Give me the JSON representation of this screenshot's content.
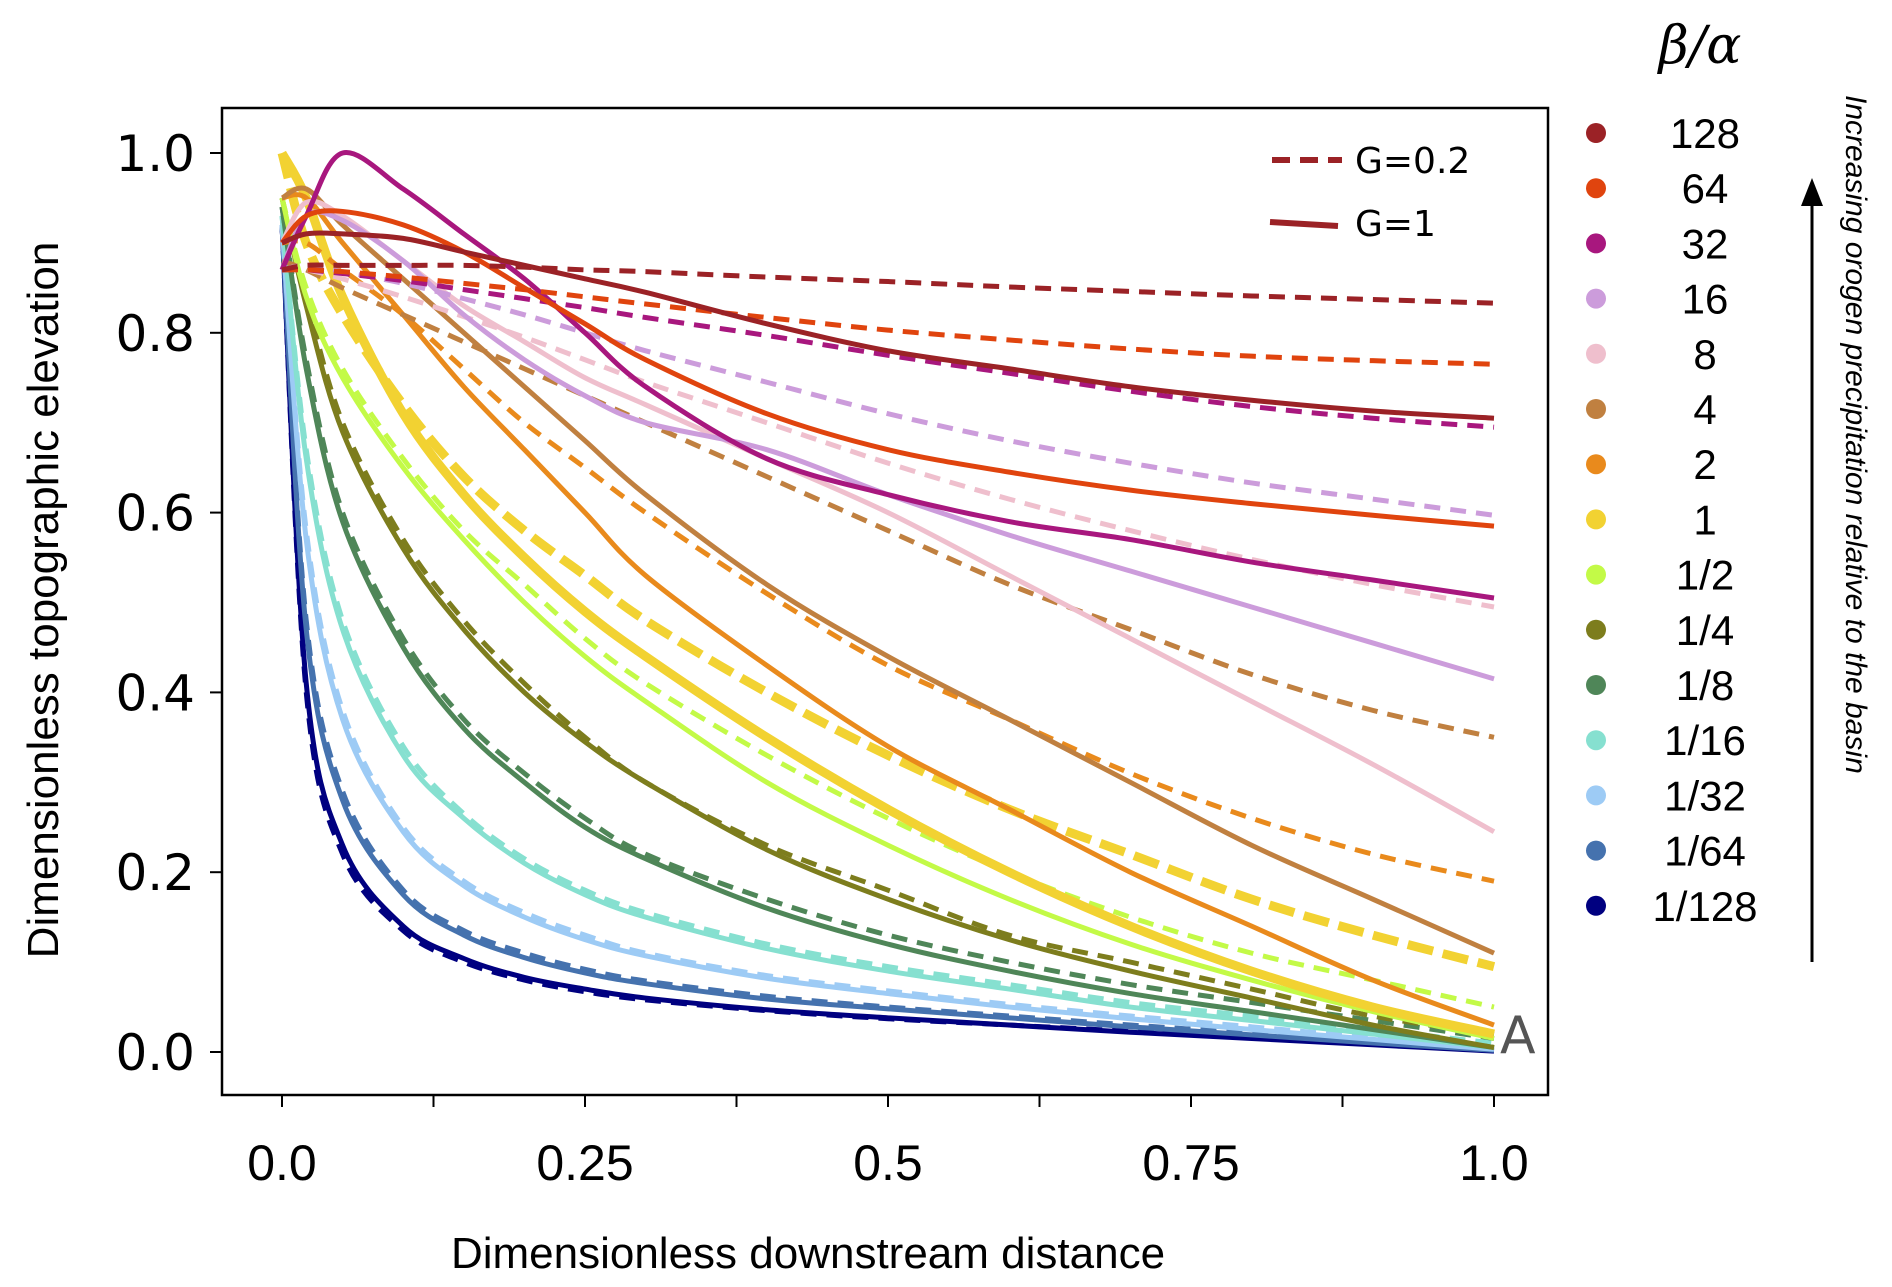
{
  "chart_data": {
    "type": "line",
    "title": "",
    "xlabel": "Dimensionless downstream distance",
    "ylabel": "Dimensionless topographic elevation",
    "xlim": [
      -0.05,
      1.05
    ],
    "ylim": [
      -0.05,
      1.05
    ],
    "x_ticks": [
      0.0,
      0.125,
      0.25,
      0.375,
      0.5,
      0.625,
      0.75,
      0.875,
      1.0
    ],
    "x_tick_labels": [
      {
        "value": 0.0,
        "label": "0.0"
      },
      {
        "value": 0.25,
        "label": "0.25"
      },
      {
        "value": 0.5,
        "label": "0.5"
      },
      {
        "value": 0.75,
        "label": "0.75"
      },
      {
        "value": 1.0,
        "label": "1.0"
      }
    ],
    "y_ticks": [
      {
        "value": 0.0,
        "label": "0.0"
      },
      {
        "value": 0.2,
        "label": "0.2"
      },
      {
        "value": 0.4,
        "label": "0.4"
      },
      {
        "value": 0.6,
        "label": "0.6"
      },
      {
        "value": 0.8,
        "label": "0.8"
      },
      {
        "value": 1.0,
        "label": "1.0"
      }
    ],
    "grid": false,
    "panel_label": "A",
    "style_legend": {
      "position": "top-right",
      "entries": [
        {
          "label": "G=0.2",
          "style": "dashed",
          "color": "#9b2226"
        },
        {
          "label": "G=1",
          "style": "solid",
          "color": "#9b2226"
        }
      ]
    },
    "color_legend": {
      "title": "β/α",
      "position": "right",
      "annotation": "Increasing orogen precipitation relative to the basin"
    },
    "x": [
      0,
      0.02,
      0.05,
      0.1,
      0.15,
      0.2,
      0.25,
      0.3,
      0.4,
      0.5,
      0.6,
      0.7,
      0.8,
      0.9,
      1.0
    ],
    "series": [
      {
        "ratio": "128",
        "color": "#9b2226",
        "G02": [
          0.87,
          0.875,
          0.875,
          0.875,
          0.875,
          0.873,
          0.87,
          0.868,
          0.862,
          0.857,
          0.851,
          0.846,
          0.841,
          0.837,
          0.833
        ],
        "G1": [
          0.9,
          0.91,
          0.91,
          0.905,
          0.89,
          0.875,
          0.86,
          0.845,
          0.81,
          0.78,
          0.76,
          0.74,
          0.725,
          0.713,
          0.705
        ]
      },
      {
        "ratio": "64",
        "color": "#e0440e",
        "G02": [
          0.87,
          0.87,
          0.868,
          0.862,
          0.855,
          0.848,
          0.84,
          0.832,
          0.817,
          0.803,
          0.792,
          0.782,
          0.774,
          0.769,
          0.765
        ],
        "G1": [
          0.9,
          0.93,
          0.935,
          0.92,
          0.89,
          0.85,
          0.81,
          0.77,
          0.71,
          0.67,
          0.645,
          0.625,
          0.61,
          0.597,
          0.585
        ]
      },
      {
        "ratio": "32",
        "color": "#a8177e",
        "G02": [
          0.87,
          0.87,
          0.866,
          0.858,
          0.848,
          0.838,
          0.828,
          0.817,
          0.797,
          0.775,
          0.755,
          0.735,
          0.718,
          0.705,
          0.695
        ],
        "G1": [
          0.87,
          0.93,
          1.0,
          0.96,
          0.91,
          0.86,
          0.8,
          0.74,
          0.66,
          0.62,
          0.59,
          0.57,
          0.545,
          0.525,
          0.505
        ]
      },
      {
        "ratio": "16",
        "color": "#cc9cdb",
        "G02": [
          0.87,
          0.875,
          0.868,
          0.855,
          0.838,
          0.82,
          0.8,
          0.78,
          0.745,
          0.71,
          0.68,
          0.655,
          0.633,
          0.615,
          0.597
        ],
        "G1": [
          0.87,
          0.93,
          0.925,
          0.88,
          0.82,
          0.77,
          0.73,
          0.7,
          0.67,
          0.62,
          0.575,
          0.535,
          0.495,
          0.455,
          0.415
        ]
      },
      {
        "ratio": "8",
        "color": "#efbfcd",
        "G02": [
          0.87,
          0.87,
          0.86,
          0.84,
          0.818,
          0.795,
          0.77,
          0.745,
          0.7,
          0.655,
          0.615,
          0.58,
          0.548,
          0.52,
          0.495
        ],
        "G1": [
          0.9,
          0.945,
          0.93,
          0.88,
          0.83,
          0.79,
          0.75,
          0.72,
          0.66,
          0.6,
          0.53,
          0.46,
          0.39,
          0.32,
          0.245
        ]
      },
      {
        "ratio": "4",
        "color": "#c08040",
        "G02": [
          0.88,
          0.87,
          0.85,
          0.82,
          0.79,
          0.76,
          0.73,
          0.7,
          0.64,
          0.58,
          0.52,
          0.47,
          0.42,
          0.38,
          0.35
        ],
        "G1": [
          0.95,
          0.96,
          0.92,
          0.86,
          0.8,
          0.74,
          0.68,
          0.62,
          0.52,
          0.44,
          0.37,
          0.3,
          0.23,
          0.17,
          0.11
        ]
      },
      {
        "ratio": "2",
        "color": "#e98a1c",
        "G02": [
          0.9,
          0.9,
          0.87,
          0.82,
          0.76,
          0.7,
          0.65,
          0.6,
          0.51,
          0.43,
          0.37,
          0.31,
          0.26,
          0.22,
          0.19
        ],
        "G1": [
          0.95,
          0.95,
          0.9,
          0.82,
          0.74,
          0.67,
          0.6,
          0.53,
          0.43,
          0.34,
          0.27,
          0.2,
          0.14,
          0.08,
          0.03
        ]
      },
      {
        "ratio": "1",
        "color": "#f2d232",
        "G02": [
          1.0,
          0.9,
          0.82,
          0.72,
          0.64,
          0.58,
          0.53,
          0.48,
          0.4,
          0.33,
          0.27,
          0.22,
          0.17,
          0.13,
          0.095
        ],
        "G1": [
          1.0,
          0.95,
          0.84,
          0.71,
          0.62,
          0.55,
          0.49,
          0.44,
          0.35,
          0.27,
          0.2,
          0.14,
          0.09,
          0.05,
          0.02
        ]
      },
      {
        "ratio": "1/2",
        "color": "#c3fa47",
        "G02": [
          0.95,
          0.85,
          0.76,
          0.66,
          0.58,
          0.52,
          0.46,
          0.41,
          0.33,
          0.26,
          0.2,
          0.15,
          0.11,
          0.08,
          0.05
        ],
        "G1": [
          0.95,
          0.84,
          0.75,
          0.65,
          0.57,
          0.5,
          0.44,
          0.39,
          0.3,
          0.23,
          0.17,
          0.12,
          0.08,
          0.045,
          0.015
        ]
      },
      {
        "ratio": "1/4",
        "color": "#7d7d1d",
        "G02": [
          0.95,
          0.84,
          0.7,
          0.57,
          0.48,
          0.41,
          0.35,
          0.3,
          0.23,
          0.18,
          0.13,
          0.1,
          0.07,
          0.04,
          0.02
        ],
        "G1": [
          0.95,
          0.83,
          0.69,
          0.56,
          0.47,
          0.4,
          0.345,
          0.3,
          0.225,
          0.17,
          0.125,
          0.09,
          0.06,
          0.03,
          0.005
        ]
      },
      {
        "ratio": "1/8",
        "color": "#4f8658",
        "G02": [
          0.94,
          0.77,
          0.6,
          0.46,
          0.37,
          0.31,
          0.26,
          0.22,
          0.17,
          0.13,
          0.1,
          0.075,
          0.055,
          0.035,
          0.015
        ],
        "G1": [
          0.94,
          0.76,
          0.59,
          0.45,
          0.36,
          0.3,
          0.25,
          0.215,
          0.16,
          0.12,
          0.09,
          0.065,
          0.045,
          0.025,
          0.005
        ]
      },
      {
        "ratio": "1/16",
        "color": "#86e0d0",
        "G02": [
          0.93,
          0.67,
          0.48,
          0.34,
          0.265,
          0.215,
          0.18,
          0.155,
          0.12,
          0.095,
          0.075,
          0.055,
          0.04,
          0.025,
          0.01
        ],
        "G1": [
          0.93,
          0.66,
          0.47,
          0.33,
          0.26,
          0.21,
          0.175,
          0.15,
          0.115,
          0.09,
          0.07,
          0.05,
          0.035,
          0.02,
          0.005
        ]
      },
      {
        "ratio": "1/32",
        "color": "#9dcbf5",
        "G02": [
          0.92,
          0.58,
          0.38,
          0.25,
          0.19,
          0.155,
          0.13,
          0.11,
          0.085,
          0.068,
          0.053,
          0.04,
          0.028,
          0.016,
          0.005
        ],
        "G1": [
          0.92,
          0.57,
          0.37,
          0.245,
          0.185,
          0.15,
          0.125,
          0.107,
          0.082,
          0.065,
          0.05,
          0.037,
          0.025,
          0.014,
          0.003
        ]
      },
      {
        "ratio": "1/64",
        "color": "#4572ae",
        "G02": [
          0.92,
          0.48,
          0.29,
          0.18,
          0.135,
          0.11,
          0.092,
          0.079,
          0.062,
          0.05,
          0.04,
          0.03,
          0.021,
          0.012,
          0.003
        ],
        "G1": [
          0.92,
          0.47,
          0.28,
          0.175,
          0.13,
          0.105,
          0.088,
          0.076,
          0.059,
          0.048,
          0.038,
          0.028,
          0.019,
          0.01,
          0.002
        ]
      },
      {
        "ratio": "1/128",
        "color": "#000080",
        "G02": [
          0.92,
          0.4,
          0.22,
          0.135,
          0.1,
          0.08,
          0.067,
          0.058,
          0.046,
          0.037,
          0.03,
          0.023,
          0.016,
          0.009,
          0.002
        ],
        "G1": [
          0.92,
          0.41,
          0.23,
          0.14,
          0.104,
          0.083,
          0.07,
          0.06,
          0.047,
          0.038,
          0.03,
          0.022,
          0.015,
          0.008,
          0.001
        ]
      }
    ]
  }
}
